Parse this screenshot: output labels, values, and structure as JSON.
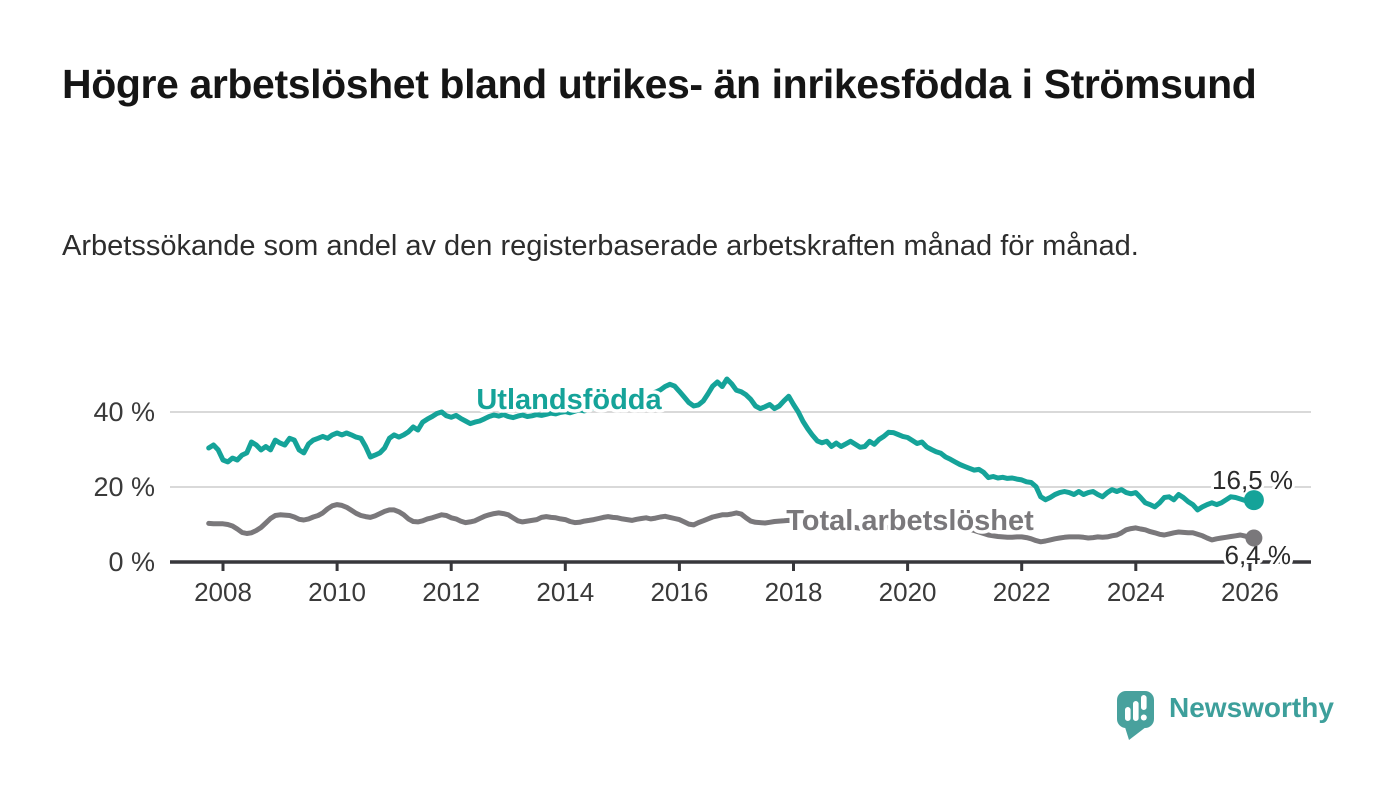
{
  "header": {
    "title": "Högre arbetslöshet bland utrikes- än inrikesfödda i Strömsund",
    "subtitle": "Arbetssökande som andel av den registerbaserade arbetskraften månad för månad."
  },
  "chart_data": {
    "type": "line",
    "x_unit": "monthly, year fractions",
    "x_start_year": 2007.75,
    "points_per_year": 12,
    "x_tick_years": [
      2008,
      2010,
      2012,
      2014,
      2016,
      2018,
      2020,
      2022,
      2024,
      2026
    ],
    "x_tick_labels": [
      "2008",
      "2010",
      "2012",
      "2014",
      "2016",
      "2018",
      "2020",
      "2022",
      "2024",
      "2026"
    ],
    "y_ticks": [
      {
        "value": 0,
        "label": "0 %"
      },
      {
        "value": 20,
        "label": "20 %"
      },
      {
        "value": 40,
        "label": "40 %"
      }
    ],
    "ylim": [
      0,
      55
    ],
    "xlim_years": [
      2007.1,
      2027.1
    ],
    "grid": "horizontal-only",
    "legend": "inline-line-labels",
    "series": [
      {
        "name": "Utlandsfödda",
        "color": "#15a399",
        "end_label": "16,5 %",
        "end_value": 16.5,
        "values": [
          30.4,
          31.2,
          29.9,
          27.2,
          26.7,
          27.7,
          27.2,
          28.5,
          29.1,
          32.0,
          31.2,
          29.9,
          30.8,
          29.9,
          32.5,
          31.7,
          31.2,
          33.0,
          32.5,
          29.9,
          29.1,
          31.5,
          32.5,
          33.0,
          33.5,
          33.0,
          33.9,
          34.4,
          33.9,
          34.4,
          33.9,
          33.3,
          33.0,
          30.8,
          28.0,
          28.5,
          29.1,
          30.4,
          33.0,
          33.9,
          33.3,
          33.9,
          34.7,
          36.0,
          35.2,
          37.3,
          38.1,
          38.8,
          39.6,
          40.0,
          39.0,
          38.6,
          39.1,
          38.3,
          37.6,
          36.9,
          37.3,
          37.6,
          38.2,
          38.8,
          39.2,
          38.9,
          39.3,
          38.8,
          38.5,
          38.9,
          39.2,
          38.8,
          39.0,
          39.3,
          39.1,
          39.4,
          39.7,
          39.5,
          39.9,
          40.1,
          39.8,
          40.2,
          40.6,
          40.3,
          40.8,
          41.2,
          41.0,
          41.5,
          41.9,
          42.3,
          42.0,
          42.5,
          43.0,
          43.4,
          43.1,
          43.6,
          44.2,
          44.8,
          45.3,
          45.9,
          46.8,
          47.4,
          46.9,
          45.5,
          44.0,
          42.5,
          41.6,
          41.9,
          42.9,
          44.8,
          46.9,
          48.0,
          46.8,
          48.8,
          47.5,
          45.8,
          45.4,
          44.6,
          43.4,
          41.6,
          40.9,
          41.4,
          42.0,
          40.9,
          41.6,
          43.0,
          44.2,
          42.0,
          40.0,
          37.5,
          35.5,
          33.8,
          32.3,
          31.8,
          32.2,
          30.8,
          31.7,
          30.8,
          31.5,
          32.2,
          31.4,
          30.6,
          30.8,
          32.2,
          31.4,
          32.7,
          33.5,
          34.6,
          34.5,
          34.0,
          33.5,
          33.2,
          32.4,
          31.6,
          32.0,
          30.7,
          30.0,
          29.4,
          29.0,
          28.0,
          27.4,
          26.7,
          26.0,
          25.5,
          25.0,
          24.5,
          24.7,
          23.9,
          22.5,
          22.8,
          22.4,
          22.6,
          22.3,
          22.4,
          22.1,
          21.9,
          21.4,
          21.2,
          20.1,
          17.4,
          16.6,
          17.2,
          18.0,
          18.5,
          18.8,
          18.5,
          18.0,
          18.8,
          18.0,
          18.5,
          18.8,
          18.0,
          17.4,
          18.5,
          19.3,
          18.8,
          19.3,
          18.5,
          18.2,
          18.5,
          17.2,
          15.8,
          15.3,
          14.7,
          15.8,
          17.2,
          17.4,
          16.6,
          18.0,
          17.2,
          16.1,
          15.3,
          13.9,
          14.7,
          15.3,
          15.8,
          15.3,
          15.8,
          16.6,
          17.4,
          17.2,
          16.8,
          16.4,
          16.5
        ]
      },
      {
        "name": "Total arbetslöshet",
        "color": "#7a787b",
        "end_label": "6,4 %",
        "end_value": 6.4,
        "values": [
          10.3,
          10.2,
          10.2,
          10.2,
          10.0,
          9.6,
          8.8,
          7.9,
          7.6,
          7.8,
          8.4,
          9.2,
          10.4,
          11.6,
          12.4,
          12.6,
          12.5,
          12.4,
          12.0,
          11.4,
          11.2,
          11.5,
          12.0,
          12.4,
          13.1,
          14.2,
          15.0,
          15.3,
          15.1,
          14.6,
          13.8,
          13.0,
          12.4,
          12.1,
          11.9,
          12.3,
          12.9,
          13.5,
          13.9,
          13.9,
          13.4,
          12.6,
          11.5,
          10.8,
          10.7,
          11.0,
          11.5,
          11.8,
          12.2,
          12.6,
          12.4,
          11.8,
          11.5,
          10.9,
          10.5,
          10.7,
          11.0,
          11.6,
          12.2,
          12.6,
          12.9,
          13.1,
          12.9,
          12.6,
          11.8,
          11.0,
          10.7,
          10.9,
          11.1,
          11.3,
          11.9,
          12.1,
          11.9,
          11.8,
          11.5,
          11.3,
          10.8,
          10.5,
          10.6,
          10.9,
          11.1,
          11.3,
          11.6,
          11.9,
          12.1,
          11.9,
          11.8,
          11.5,
          11.3,
          11.1,
          11.4,
          11.6,
          11.8,
          11.5,
          11.7,
          12.0,
          12.2,
          11.9,
          11.6,
          11.3,
          10.7,
          10.1,
          9.9,
          10.5,
          11.0,
          11.5,
          12.0,
          12.3,
          12.6,
          12.6,
          12.8,
          13.1,
          12.8,
          11.8,
          10.9,
          10.6,
          10.5,
          10.4,
          10.6,
          10.8,
          10.9,
          11.0,
          11.1,
          11.0,
          10.8,
          10.5,
          10.2,
          9.9,
          9.7,
          9.6,
          9.7,
          9.5,
          9.4,
          9.3,
          9.2,
          9.3,
          9.2,
          9.0,
          8.8,
          8.7,
          8.8,
          9.0,
          9.1,
          9.2,
          9.3,
          9.2,
          9.4,
          9.6,
          9.8,
          10.3,
          10.9,
          11.1,
          11.0,
          10.8,
          10.5,
          10.2,
          9.9,
          9.6,
          9.4,
          9.0,
          8.7,
          8.4,
          8.0,
          7.6,
          7.2,
          7.0,
          6.8,
          6.7,
          6.6,
          6.6,
          6.7,
          6.7,
          6.5,
          6.2,
          5.7,
          5.4,
          5.6,
          5.9,
          6.2,
          6.4,
          6.6,
          6.7,
          6.7,
          6.7,
          6.6,
          6.4,
          6.5,
          6.7,
          6.6,
          6.7,
          7.0,
          7.2,
          7.8,
          8.6,
          8.9,
          9.1,
          8.8,
          8.6,
          8.1,
          7.8,
          7.4,
          7.2,
          7.5,
          7.8,
          8.0,
          7.9,
          7.8,
          7.8,
          7.4,
          7.0,
          6.4,
          5.9,
          6.2,
          6.4,
          6.6,
          6.8,
          7.0,
          7.2,
          6.9,
          6.4
        ]
      }
    ]
  },
  "branding": {
    "brand": "Newsworthy",
    "icon": "bar-chart-speech-bubble",
    "color": "#3d9f9b"
  },
  "colors": {
    "accent_teal": "#15a399",
    "series_gray": "#7a787b",
    "axis_text": "#3a3a3a",
    "value_label_text": "#2b2b2b",
    "gridline": "#d9d9d9",
    "axis_line": "#37373b",
    "title_text": "#151515",
    "background": "#ffffff"
  }
}
